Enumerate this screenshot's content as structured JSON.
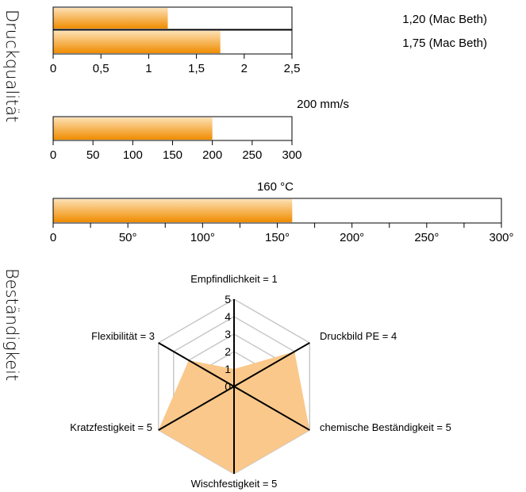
{
  "side_labels": {
    "top": "Druckqualität",
    "bottom": "Beständigkeit"
  },
  "colors": {
    "bar_dark": "#f08c00",
    "bar_light": "#fde0b4",
    "radar_fill": "#fac88a",
    "grid": "#c8c8c8",
    "spoke": "#000000"
  },
  "chart_data": [
    {
      "type": "bar",
      "orientation": "horizontal",
      "values": [
        1.2,
        1.75
      ],
      "value_labels": [
        "1,20 (Mac Beth)",
        "1,75 (Mac Beth)"
      ],
      "xlim": [
        0,
        2.5
      ],
      "ticks": [
        0,
        0.5,
        1,
        1.5,
        2,
        2.5
      ],
      "tick_labels": [
        "0",
        "0,5",
        "1",
        "1,5",
        "2",
        "2,5"
      ]
    },
    {
      "type": "bar",
      "orientation": "horizontal",
      "values": [
        200
      ],
      "value_labels": [
        "200 mm/s"
      ],
      "xlim": [
        0,
        300
      ],
      "ticks": [
        0,
        50,
        100,
        150,
        200,
        250,
        300
      ],
      "tick_labels": [
        "0",
        "50",
        "100",
        "150",
        "200",
        "250",
        "300"
      ]
    },
    {
      "type": "bar",
      "orientation": "horizontal",
      "values": [
        160
      ],
      "value_labels": [
        "160 °C"
      ],
      "xlim": [
        0,
        300
      ],
      "ticks": [
        0,
        50,
        100,
        150,
        200,
        250,
        300
      ],
      "minor_ticks": [
        25,
        75,
        125,
        175,
        225,
        275
      ],
      "tick_labels": [
        "0",
        "50°",
        "100°",
        "150°",
        "200°",
        "250°",
        "300°"
      ]
    },
    {
      "type": "radar",
      "axes": [
        "Empfindlichkeit",
        "Druckbild PE",
        "chemische Beständigkeit",
        "Wischfestigkeit",
        "Kratzfestigkeit",
        "Flexibilität"
      ],
      "axis_labels": [
        "Empfindlichkeit = 1",
        "Druckbild PE = 4",
        "chemische Beständigkeit = 5",
        "Wischfestigkeit = 5",
        "Kratzfestigkeit = 5",
        "Flexibilität = 3"
      ],
      "values": [
        1,
        4,
        5,
        5,
        5,
        3
      ],
      "rlim": [
        0,
        5
      ],
      "tick_labels": [
        "0",
        "1",
        "2",
        "3",
        "4",
        "5"
      ]
    }
  ]
}
